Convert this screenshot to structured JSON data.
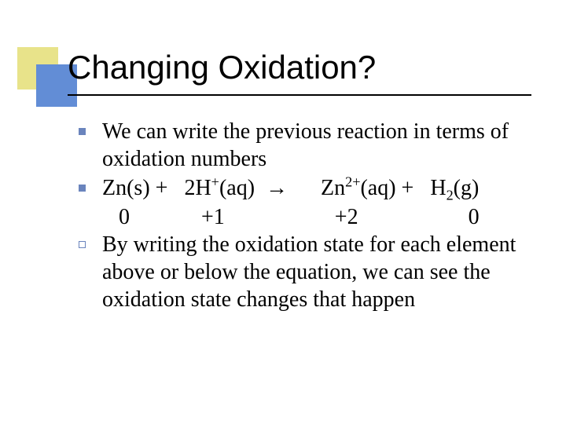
{
  "slide": {
    "title": "Changing Oxidation?",
    "title_font_family": "Arial",
    "title_font_size_pt": 32,
    "body_font_family": "Times New Roman",
    "body_font_size_pt": 21,
    "text_color": "#000000",
    "background_color": "#ffffff",
    "underline_color": "#000000",
    "decor": {
      "back_color": "#e8e38a",
      "front_color": "#628dd6"
    },
    "bullet_color": "#6a84bd",
    "items": [
      {
        "bullet": "filled-square",
        "text": "We can write the previous reaction in terms of oxidation numbers"
      },
      {
        "bullet": "filled-square",
        "equation_html": "Zn(s) +   2H<sup>+</sup>(aq)  →      Zn<sup>2+</sup>(aq) +   H<sub>2</sub>(g)",
        "oxidation_line": "   0             +1                    +2                    0"
      },
      {
        "bullet": "hollow-square",
        "text": "By writing the oxidation state for each element above or below the equation, we can see the oxidation state changes that happen"
      }
    ]
  }
}
